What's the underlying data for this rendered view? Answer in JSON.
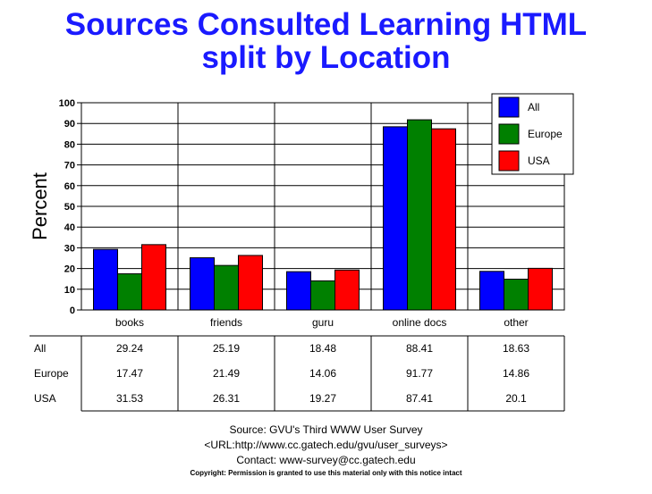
{
  "title_line1": "Sources Consulted Learning HTML",
  "title_line2": "split by Location",
  "chart_data": {
    "type": "bar",
    "title": "Sources Consulted Learning HTML split by Location",
    "ylabel": "Percent",
    "ylim": [
      0,
      100
    ],
    "yticks": [
      0,
      10,
      20,
      30,
      40,
      50,
      60,
      70,
      80,
      90,
      100
    ],
    "categories": [
      "books",
      "friends",
      "guru",
      "online docs",
      "other"
    ],
    "series": [
      {
        "name": "All",
        "color": "#0000ff",
        "values": [
          29.24,
          25.19,
          18.48,
          88.41,
          18.63
        ]
      },
      {
        "name": "Europe",
        "color": "#008000",
        "values": [
          17.47,
          21.49,
          14.06,
          91.77,
          14.86
        ]
      },
      {
        "name": "USA",
        "color": "#ff0000",
        "values": [
          31.53,
          26.31,
          19.27,
          87.41,
          20.1
        ]
      }
    ],
    "grid": true,
    "legend": "top-right"
  },
  "footer": {
    "source": "Source: GVU's Third WWW User Survey",
    "url": "<URL:http://www.cc.gatech.edu/gvu/user_surveys>",
    "contact": "Contact: www-survey@cc.gatech.edu",
    "copyright": "Copyright: Permission is granted to use this material only with this notice intact"
  }
}
